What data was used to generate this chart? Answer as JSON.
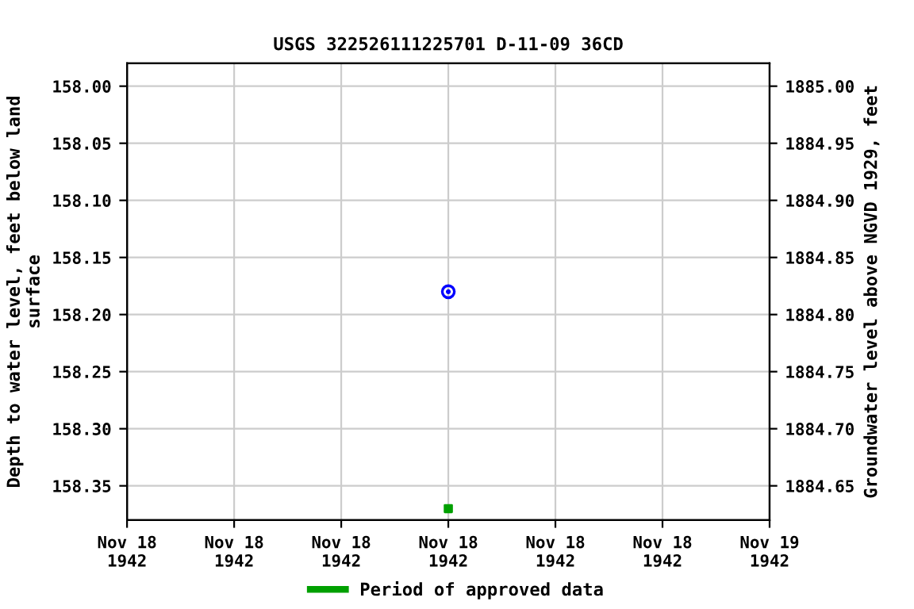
{
  "chart_data": {
    "type": "scatter",
    "title": "USGS 322526111225701 D-11-09 36CD",
    "ylabel": "Depth to water level, feet below land\nsurface",
    "y2label": "Groundwater level above NGVD 1929, feet",
    "xlim": [
      "1942-11-18T00:00",
      "1942-11-19T00:00"
    ],
    "xticks": [
      {
        "value": "1942-11-18T00:00",
        "label": "Nov 18\n1942"
      },
      {
        "value": "1942-11-18T04:00",
        "label": "Nov 18\n1942"
      },
      {
        "value": "1942-11-18T08:00",
        "label": "Nov 18\n1942"
      },
      {
        "value": "1942-11-18T12:00",
        "label": "Nov 18\n1942"
      },
      {
        "value": "1942-11-18T16:00",
        "label": "Nov 18\n1942"
      },
      {
        "value": "1942-11-18T20:00",
        "label": "Nov 18\n1942"
      },
      {
        "value": "1942-11-19T00:00",
        "label": "Nov 19\n1942"
      }
    ],
    "ylim": [
      158.38,
      157.98
    ],
    "yticks": [
      {
        "value": 158.0,
        "label": "158.00"
      },
      {
        "value": 158.05,
        "label": "158.05"
      },
      {
        "value": 158.1,
        "label": "158.10"
      },
      {
        "value": 158.15,
        "label": "158.15"
      },
      {
        "value": 158.2,
        "label": "158.20"
      },
      {
        "value": 158.25,
        "label": "158.25"
      },
      {
        "value": 158.3,
        "label": "158.30"
      },
      {
        "value": 158.35,
        "label": "158.35"
      }
    ],
    "y2lim": [
      1884.62,
      1885.02
    ],
    "y2ticks": [
      {
        "value": 1885.0,
        "label": "1885.00"
      },
      {
        "value": 1884.95,
        "label": "1884.95"
      },
      {
        "value": 1884.9,
        "label": "1884.90"
      },
      {
        "value": 1884.85,
        "label": "1884.85"
      },
      {
        "value": 1884.8,
        "label": "1884.80"
      },
      {
        "value": 1884.75,
        "label": "1884.75"
      },
      {
        "value": 1884.7,
        "label": "1884.70"
      },
      {
        "value": 1884.65,
        "label": "1884.65"
      }
    ],
    "grid": true,
    "legend": "bottom",
    "series": [
      {
        "color": "#0000ff",
        "marker": "circle",
        "x": [
          "1942-11-18T12:00"
        ],
        "values": [
          158.18
        ]
      },
      {
        "name": "Period of approved data",
        "color": "#00a000",
        "marker": "square",
        "x": [
          "1942-11-18T12:00"
        ],
        "values": [
          158.37
        ]
      }
    ]
  }
}
